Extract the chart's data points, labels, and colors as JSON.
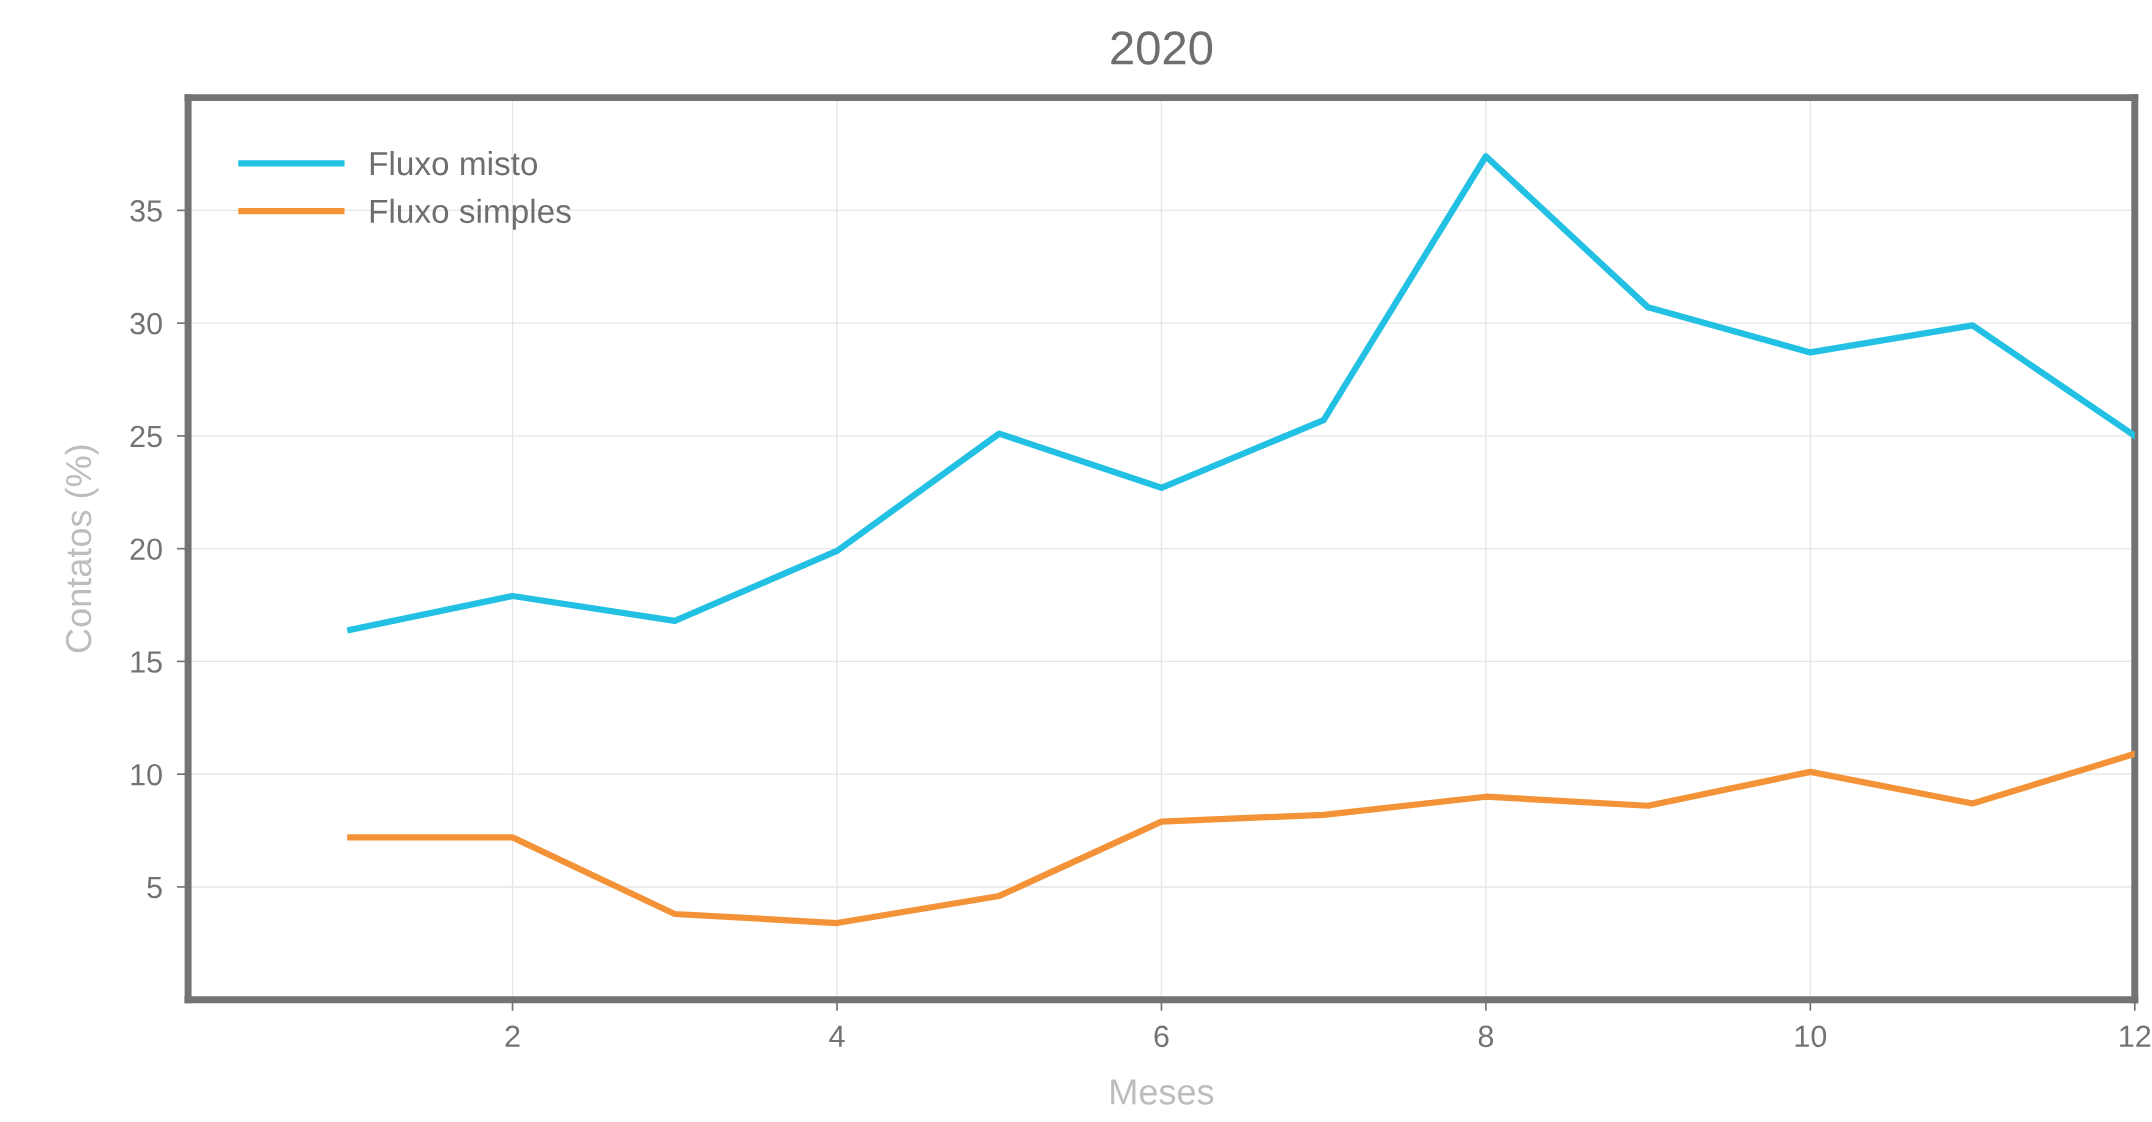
{
  "chart_data": {
    "type": "line",
    "title": "2020",
    "xlabel": "Meses",
    "ylabel": "Contatos (%)",
    "x": [
      1,
      2,
      3,
      4,
      5,
      6,
      7,
      8,
      9,
      10,
      11,
      12
    ],
    "series": [
      {
        "name": "Fluxo misto",
        "color": "#22c0e3",
        "values": [
          16.4,
          17.9,
          16.8,
          19.9,
          25.1,
          22.7,
          25.7,
          37.4,
          30.7,
          28.7,
          29.9,
          25.0
        ]
      },
      {
        "name": "Fluxo simples",
        "color": "#f39236",
        "values": [
          7.2,
          7.2,
          3.8,
          3.4,
          4.6,
          7.9,
          8.2,
          9.0,
          8.6,
          10.1,
          8.7,
          10.9
        ]
      }
    ],
    "xlim": [
      0,
      12
    ],
    "xticks": [
      2,
      4,
      6,
      8,
      10,
      12
    ],
    "ylim": [
      0,
      40
    ],
    "yticks": [
      5,
      10,
      15,
      20,
      25,
      30,
      35
    ],
    "grid": true,
    "legend": "top left",
    "marker": "none",
    "line_style": "solid"
  }
}
